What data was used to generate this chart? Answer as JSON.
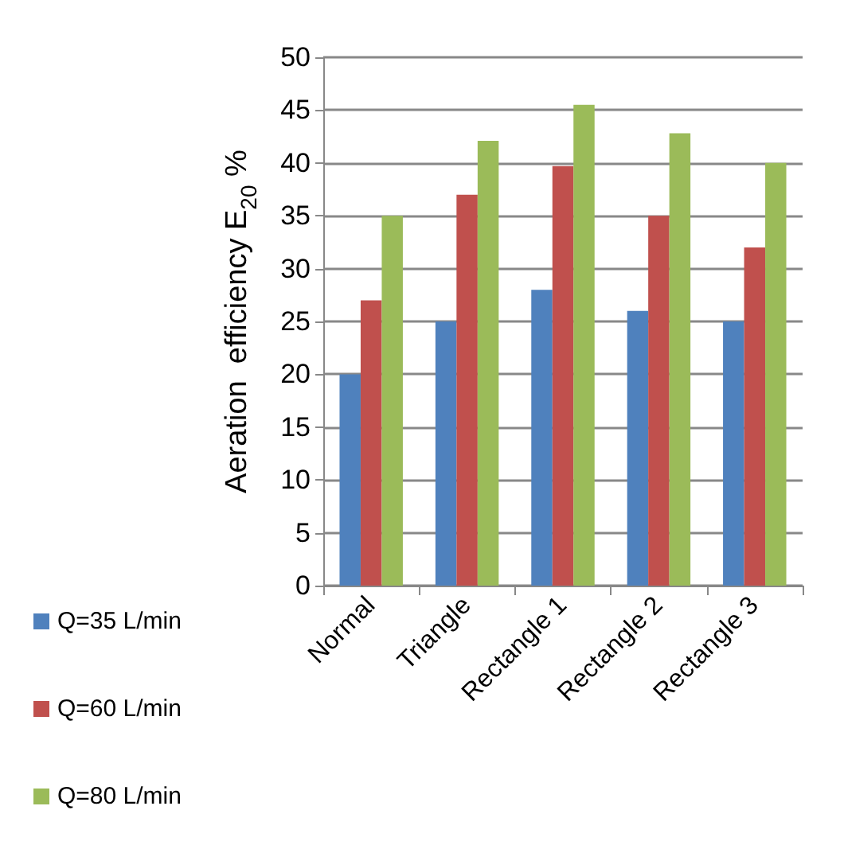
{
  "chart_data": {
    "type": "bar",
    "ylabel": "Aeration  efficiency E$_{20}$ %",
    "categories": [
      "Normal",
      "Triangle",
      "Rectangle 1",
      "Rectangle 2",
      "Rectangle 3"
    ],
    "series": [
      {
        "name": "Q=35 L/min",
        "color": "#4f81bd",
        "values": [
          20,
          25,
          28,
          26,
          25
        ]
      },
      {
        "name": "Q=60 L/min",
        "color": "#c0504d",
        "values": [
          27,
          37,
          39.7,
          35,
          32
        ]
      },
      {
        "name": "Q=80 L/min",
        "color": "#9bbb59",
        "values": [
          35,
          42.1,
          45.5,
          42.8,
          40
        ]
      }
    ],
    "ylim": [
      0,
      50
    ],
    "yticks": [
      0,
      5,
      10,
      15,
      20,
      25,
      30,
      35,
      40,
      45,
      50
    ],
    "grid": "y",
    "legend": "bottom left"
  }
}
